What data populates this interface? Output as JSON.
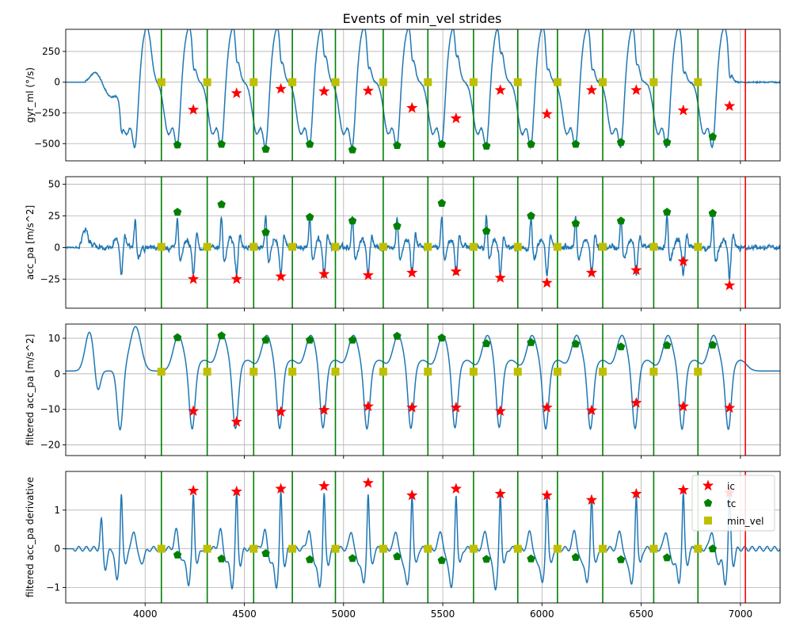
{
  "colors": {
    "signal": "#1f77b4",
    "ic": "#ff0000",
    "tc": "#008000",
    "min_vel": "#bfbf00",
    "stride_line": "#008000",
    "end_line": "#ff0000",
    "grid": "#b0b0b0"
  },
  "chart_data": {
    "type": "line",
    "title": "Events of min_vel strides",
    "shared_x": {
      "xlim": [
        3600,
        7200
      ],
      "ticks": [
        4000,
        4500,
        5000,
        5500,
        6000,
        6500,
        7000
      ],
      "tick_labels": [
        "4000",
        "4500",
        "5000",
        "5500",
        "6000",
        "6500",
        "7000"
      ]
    },
    "grid": true,
    "legend": {
      "placement": "top-right",
      "panel": 3,
      "entries": [
        {
          "label": "ic",
          "marker": "star",
          "color": "#ff0000"
        },
        {
          "label": "tc",
          "marker": "pentagon",
          "color": "#008000"
        },
        {
          "label": "min_vel",
          "marker": "square",
          "color": "#bfbf00"
        }
      ]
    },
    "stride_boundaries": [
      4082,
      4313,
      4547,
      4742,
      4959,
      5200,
      5425,
      5655,
      5878,
      6078,
      6306,
      6563,
      6786
    ],
    "end_line": 7025,
    "ic_x": [
      4243,
      4461,
      4684,
      4902,
      5124,
      5345,
      5567,
      5790,
      6025,
      6250,
      6475,
      6712,
      6945
    ],
    "tc_x": [
      4163,
      4385,
      4608,
      4830,
      5045,
      5270,
      5495,
      5720,
      5945,
      6170,
      6398,
      6630,
      6860
    ],
    "min_vel_x": [
      4082,
      4313,
      4547,
      4742,
      4959,
      5200,
      5425,
      5655,
      5878,
      6078,
      6306,
      6563,
      6786
    ],
    "panels": [
      {
        "ylabel": "gyr_ml (°/s)",
        "ylim": [
          -640,
          430
        ],
        "yticks": [
          -500,
          -250,
          0,
          250
        ],
        "ytick_labels": [
          "−500",
          "−250",
          "0",
          "250"
        ],
        "ic_y": [
          -225,
          -90,
          -55,
          -75,
          -70,
          -210,
          -295,
          -65,
          -260,
          -65,
          -65,
          -230,
          -195
        ],
        "tc_y": [
          -510,
          -505,
          -545,
          -505,
          -550,
          -515,
          -505,
          -520,
          -505,
          -505,
          -490,
          -490,
          -445
        ],
        "min_vel_y": [
          0,
          0,
          0,
          0,
          0,
          0,
          0,
          0,
          0,
          0,
          0,
          0,
          0
        ],
        "signal_kind": "gyr"
      },
      {
        "ylabel": "acc_pa [m/s^2]",
        "ylim": [
          -48,
          56
        ],
        "yticks": [
          -25,
          0,
          25,
          50
        ],
        "ytick_labels": [
          "−25",
          "0",
          "25",
          "50"
        ],
        "ic_y": [
          -25,
          -25,
          -23,
          -21,
          -22,
          -20,
          -19,
          -24,
          -28,
          -20,
          -18,
          -11,
          -30
        ],
        "tc_y": [
          28,
          34,
          12,
          24,
          21,
          17,
          35,
          13,
          25,
          19,
          21,
          28,
          27
        ],
        "min_vel_y": [
          0.5,
          0.5,
          0.5,
          0.5,
          0.5,
          0.5,
          0.5,
          0.5,
          0.5,
          0.5,
          0.5,
          0.5,
          0.5
        ],
        "signal_kind": "acc"
      },
      {
        "ylabel": "filtered acc_pa [m/s^2]",
        "ylim": [
          -23,
          14
        ],
        "yticks": [
          -20,
          -10,
          0,
          10
        ],
        "ytick_labels": [
          "−20",
          "−10",
          "0",
          "10"
        ],
        "ic_y": [
          -10.5,
          -13.5,
          -10.7,
          -10.2,
          -9.2,
          -9.5,
          -9.5,
          -10.5,
          -9.5,
          -10.3,
          -8.2,
          -9.2,
          -9.6
        ],
        "tc_y": [
          10.2,
          10.7,
          9.5,
          9.5,
          9.5,
          10.6,
          10.1,
          8.5,
          8.8,
          8.4,
          7.6,
          8.0,
          8.1
        ],
        "min_vel_y": [
          0.6,
          0.6,
          0.6,
          0.6,
          0.6,
          0.6,
          0.6,
          0.6,
          0.6,
          0.6,
          0.6,
          0.6,
          0.6
        ],
        "signal_kind": "filt"
      },
      {
        "ylabel": "filtered acc_pa derivative",
        "ylim": [
          -1.4,
          2.0
        ],
        "yticks": [
          -1,
          0,
          1
        ],
        "ytick_labels": [
          "−1",
          "0",
          "1"
        ],
        "ic_y": [
          1.5,
          1.48,
          1.55,
          1.62,
          1.7,
          1.38,
          1.55,
          1.42,
          1.38,
          1.26,
          1.42,
          1.52,
          1.45
        ],
        "tc_y": [
          -0.16,
          -0.26,
          -0.12,
          -0.28,
          -0.25,
          -0.2,
          -0.3,
          -0.27,
          -0.26,
          -0.22,
          -0.28,
          -0.23,
          0.0
        ],
        "min_vel_y": [
          0,
          0,
          0,
          0,
          0,
          0,
          0,
          0,
          0,
          0,
          0,
          0,
          0
        ],
        "signal_kind": "deriv"
      }
    ]
  }
}
